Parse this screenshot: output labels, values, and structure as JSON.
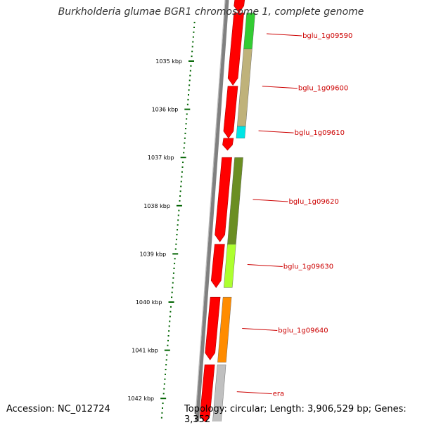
{
  "title": "Burkholderia glumae BGR1 chromosome 1, complete genome",
  "footer": {
    "accession": "Accession: NC_012724",
    "topology": "Topology: circular; Length: 3,906,529 bp; Genes: 3,352"
  },
  "colors": {
    "backbone": "#808080",
    "strand_red": "#ff0000",
    "ticks": "#006400",
    "gene_label": "#cc0000",
    "genes": [
      "#33cc33",
      "#bfb27a",
      "#00e5e5",
      "#6b8e23",
      "#adff2f",
      "#ff8c00",
      "#c0c0c0"
    ]
  },
  "scale_labels": [
    {
      "kbp": 1035,
      "label": "1035 kbp"
    },
    {
      "kbp": 1036,
      "label": "1036 kbp"
    },
    {
      "kbp": 1037,
      "label": "1037 kbp"
    },
    {
      "kbp": 1038,
      "label": "1038 kbp"
    },
    {
      "kbp": 1039,
      "label": "1039 kbp"
    },
    {
      "kbp": 1040,
      "label": "1040 kbp"
    },
    {
      "kbp": 1041,
      "label": "1041 kbp"
    },
    {
      "kbp": 1042,
      "label": "1042 kbp"
    }
  ],
  "genes": [
    {
      "name": "bglu_1g09590",
      "start_kbp": 1034.0,
      "end_kbp": 1034.75,
      "color": "#33cc33"
    },
    {
      "name": "bglu_1g09600",
      "start_kbp": 1034.75,
      "end_kbp": 1036.35,
      "color": "#bfb27a"
    },
    {
      "name": "bglu_1g09610",
      "start_kbp": 1036.35,
      "end_kbp": 1036.6,
      "color": "#00e5e5"
    },
    {
      "name": "bglu_1g09620",
      "start_kbp": 1037.0,
      "end_kbp": 1038.8,
      "color": "#6b8e23"
    },
    {
      "name": "bglu_1g09630",
      "start_kbp": 1038.8,
      "end_kbp": 1039.7,
      "color": "#adff2f"
    },
    {
      "name": "bglu_1g09640",
      "start_kbp": 1039.9,
      "end_kbp": 1041.25,
      "color": "#ff8c00"
    },
    {
      "name": "era",
      "start_kbp": 1041.3,
      "end_kbp": 1042.5,
      "color": "#c0c0c0"
    }
  ],
  "red_track": [
    {
      "start_kbp": 1033.0,
      "end_kbp": 1034.0
    },
    {
      "start_kbp": 1034.0,
      "end_kbp": 1035.5
    },
    {
      "start_kbp": 1035.52,
      "end_kbp": 1036.6
    },
    {
      "start_kbp": 1036.6,
      "end_kbp": 1036.85
    },
    {
      "start_kbp": 1037.0,
      "end_kbp": 1038.75
    },
    {
      "start_kbp": 1038.8,
      "end_kbp": 1039.7
    },
    {
      "start_kbp": 1039.9,
      "end_kbp": 1041.2
    },
    {
      "start_kbp": 1041.3,
      "end_kbp": 1042.5
    }
  ]
}
